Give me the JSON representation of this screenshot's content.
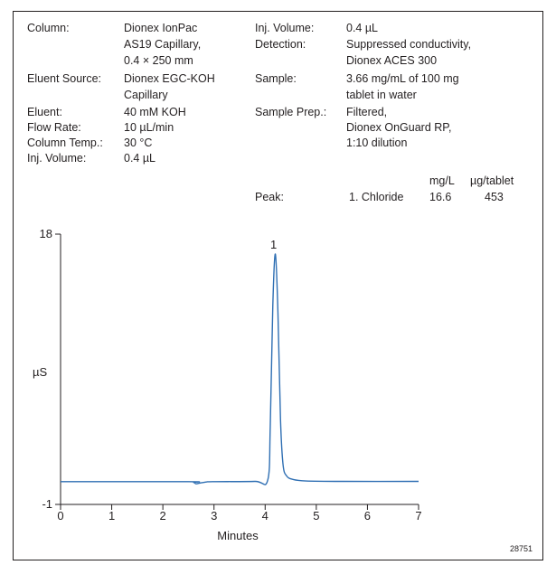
{
  "conditions": {
    "left_labels": [
      "Column:",
      "Eluent Source:",
      "Eluent:",
      "Flow Rate:",
      "Column Temp.:",
      "Inj. Volume:"
    ],
    "left_values": [
      "Dionex IonPac",
      "AS19 Capillary,",
      "0.4 × 250 mm",
      "Dionex EGC-KOH",
      "Capillary",
      "40 mM KOH",
      "10 µL/min",
      "30 °C",
      "0.4 µL"
    ],
    "right_labels": [
      "Inj. Volume:",
      "Detection:",
      "Sample:",
      "Sample Prep.:"
    ],
    "right_values": [
      "0.4 µL",
      "Suppressed conductivity,",
      "Dionex ACES 300",
      "3.66 mg/mL of 100 mg",
      "tablet in water",
      "Filtered,",
      "Dionex OnGuard RP,",
      "1:10 dilution"
    ]
  },
  "peak_table": {
    "header_mgL": "mg/L",
    "header_ug": "µg/tablet",
    "label": "Peak:",
    "rows": [
      {
        "name": "1. Chloride",
        "mgL": "16.6",
        "ug": "453"
      }
    ]
  },
  "figure_id": "28751",
  "chart_data": {
    "type": "line",
    "xlabel": "Minutes",
    "ylabel": "µS",
    "xlim": [
      0,
      7
    ],
    "ylim": [
      -1,
      18
    ],
    "x_ticks": [
      "0",
      "1",
      "2",
      "3",
      "4",
      "5",
      "6",
      "7"
    ],
    "y_ticks": [
      "18",
      "-1"
    ],
    "series": [
      {
        "color": "#2f6fb3",
        "x": [
          0,
          2.5,
          2.6,
          2.65,
          2.72,
          2.85,
          3.0,
          3.8,
          4.05,
          4.1,
          4.15,
          4.2,
          4.25,
          4.3,
          4.35,
          4.42,
          4.55,
          4.8,
          5.5,
          7
        ],
        "y": [
          0.6,
          0.6,
          0.55,
          0.45,
          0.5,
          0.58,
          0.6,
          0.62,
          0.7,
          4.5,
          13.0,
          16.6,
          12.5,
          5.0,
          1.8,
          1.0,
          0.75,
          0.65,
          0.62,
          0.62
        ]
      }
    ],
    "peaks": [
      {
        "label": "1",
        "x": 4.2,
        "y": 16.6
      }
    ]
  }
}
